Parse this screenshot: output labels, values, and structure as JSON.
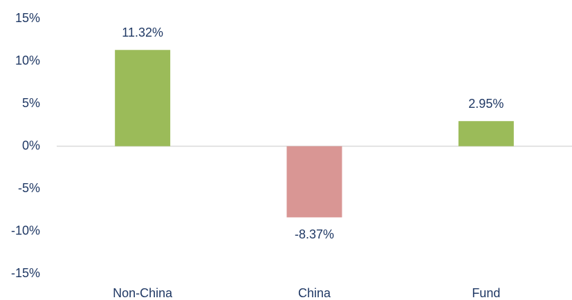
{
  "chart_data": {
    "type": "bar",
    "categories": [
      "Non-China",
      "China",
      "Fund"
    ],
    "values": [
      11.32,
      -8.37,
      2.95
    ],
    "value_labels": [
      "11.32%",
      "-8.37%",
      "2.95%"
    ],
    "colors": [
      "#9bbb59",
      "#d99694",
      "#9bbb59"
    ],
    "ylim": [
      -15,
      15
    ],
    "yticks": [
      {
        "value": -15,
        "label": "-15%"
      },
      {
        "value": -10,
        "label": "-10%"
      },
      {
        "value": -5,
        "label": "-5%"
      },
      {
        "value": 0,
        "label": "0%"
      },
      {
        "value": 5,
        "label": "5%"
      },
      {
        "value": 10,
        "label": "10%"
      },
      {
        "value": 15,
        "label": "15%"
      }
    ],
    "grid": false
  }
}
